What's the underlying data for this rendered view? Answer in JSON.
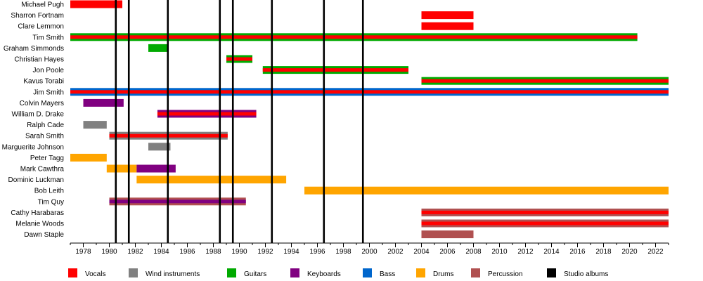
{
  "chart_data": {
    "type": "timeline",
    "title": "",
    "xlabel": "",
    "ylabel": "",
    "x_range": [
      1977.0,
      2023.0
    ],
    "x_ticks": [
      1978,
      1980,
      1982,
      1984,
      1986,
      1988,
      1990,
      1992,
      1994,
      1996,
      1998,
      2000,
      2002,
      2004,
      2006,
      2008,
      2010,
      2012,
      2014,
      2016,
      2018,
      2020,
      2022
    ],
    "roles": [
      {
        "key": "vocals",
        "label": "Vocals",
        "color": "#ff0000"
      },
      {
        "key": "wind",
        "label": "Wind instruments",
        "color": "#808080"
      },
      {
        "key": "guitars",
        "label": "Guitars",
        "color": "#00aa00"
      },
      {
        "key": "keyboards",
        "label": "Keyboards",
        "color": "#800080"
      },
      {
        "key": "bass",
        "label": "Bass",
        "color": "#0066cc"
      },
      {
        "key": "drums",
        "label": "Drums",
        "color": "#ffa500"
      },
      {
        "key": "percussion",
        "label": "Percussion",
        "color": "#b05050"
      },
      {
        "key": "albums",
        "label": "Studio albums",
        "color": "#000000"
      }
    ],
    "studio_albums": [
      1980.5,
      1981.5,
      1984.5,
      1988.5,
      1989.5,
      1992.5,
      1996.5,
      1999.5
    ],
    "members": [
      {
        "name": "Michael Pugh",
        "spans": [
          {
            "start": 1977.0,
            "end": 1981.0,
            "roles": [
              "vocals"
            ]
          }
        ]
      },
      {
        "name": "Sharron Fortnam",
        "spans": [
          {
            "start": 2004.0,
            "end": 2008.0,
            "roles": [
              "vocals"
            ]
          }
        ]
      },
      {
        "name": "Clare Lemmon",
        "spans": [
          {
            "start": 2004.0,
            "end": 2008.0,
            "roles": [
              "vocals"
            ]
          }
        ]
      },
      {
        "name": "Tim Smith",
        "spans": [
          {
            "start": 1977.0,
            "end": 2020.6,
            "roles": [
              "vocals",
              "guitars"
            ]
          }
        ]
      },
      {
        "name": "Graham Simmonds",
        "spans": [
          {
            "start": 1983.0,
            "end": 1984.5,
            "roles": [
              "guitars"
            ]
          }
        ]
      },
      {
        "name": "Christian Hayes",
        "spans": [
          {
            "start": 1989.0,
            "end": 1991.0,
            "roles": [
              "vocals",
              "guitars"
            ]
          }
        ]
      },
      {
        "name": "Jon Poole",
        "spans": [
          {
            "start": 1991.8,
            "end": 2003.0,
            "roles": [
              "vocals",
              "guitars"
            ]
          }
        ]
      },
      {
        "name": "Kavus Torabi",
        "spans": [
          {
            "start": 2004.0,
            "end": 2023.0,
            "roles": [
              "vocals",
              "guitars"
            ]
          }
        ]
      },
      {
        "name": "Jim Smith",
        "spans": [
          {
            "start": 1977.0,
            "end": 2023.0,
            "roles": [
              "vocals",
              "bass"
            ]
          }
        ]
      },
      {
        "name": "Colvin Mayers",
        "spans": [
          {
            "start": 1978.0,
            "end": 1981.1,
            "roles": [
              "keyboards"
            ]
          }
        ]
      },
      {
        "name": "William D. Drake",
        "spans": [
          {
            "start": 1983.7,
            "end": 1991.3,
            "roles": [
              "vocals",
              "keyboards"
            ]
          }
        ]
      },
      {
        "name": "Ralph Cade",
        "spans": [
          {
            "start": 1978.0,
            "end": 1979.8,
            "roles": [
              "wind"
            ]
          }
        ]
      },
      {
        "name": "Sarah Smith",
        "spans": [
          {
            "start": 1980.0,
            "end": 1989.1,
            "roles": [
              "vocals",
              "wind"
            ]
          }
        ]
      },
      {
        "name": "Marguerite Johnson",
        "spans": [
          {
            "start": 1983.0,
            "end": 1984.7,
            "roles": [
              "wind"
            ]
          }
        ]
      },
      {
        "name": "Peter Tagg",
        "spans": [
          {
            "start": 1977.0,
            "end": 1979.8,
            "roles": [
              "drums"
            ]
          }
        ]
      },
      {
        "name": "Mark Cawthra",
        "spans": [
          {
            "start": 1979.8,
            "end": 1982.1,
            "roles": [
              "drums"
            ]
          },
          {
            "start": 1982.1,
            "end": 1985.1,
            "roles": [
              "keyboards"
            ]
          }
        ]
      },
      {
        "name": "Dominic Luckman",
        "spans": [
          {
            "start": 1982.1,
            "end": 1993.6,
            "roles": [
              "drums"
            ]
          }
        ]
      },
      {
        "name": "Bob Leith",
        "spans": [
          {
            "start": 1995.0,
            "end": 2023.0,
            "roles": [
              "drums"
            ]
          }
        ]
      },
      {
        "name": "Tim Quy",
        "spans": [
          {
            "start": 1980.0,
            "end": 1990.5,
            "roles": [
              "keyboards",
              "percussion"
            ]
          }
        ]
      },
      {
        "name": "Cathy Harabaras",
        "spans": [
          {
            "start": 2004.0,
            "end": 2023.0,
            "roles": [
              "vocals",
              "percussion"
            ]
          }
        ]
      },
      {
        "name": "Melanie Woods",
        "spans": [
          {
            "start": 2004.0,
            "end": 2023.0,
            "roles": [
              "vocals",
              "percussion"
            ]
          }
        ]
      },
      {
        "name": "Dawn Staple",
        "spans": [
          {
            "start": 2004.0,
            "end": 2008.0,
            "roles": [
              "percussion"
            ]
          }
        ]
      }
    ]
  }
}
